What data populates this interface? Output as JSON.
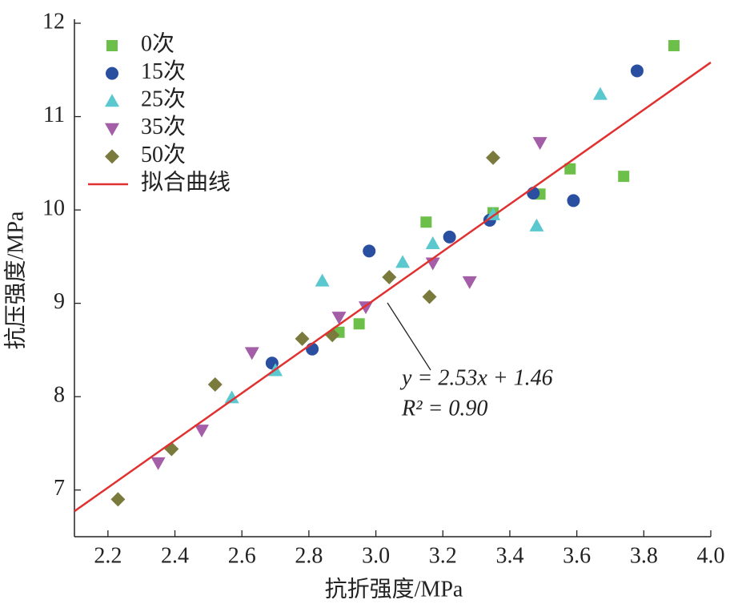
{
  "chart_data": {
    "type": "scatter",
    "xlabel": "抗折强度/MPa",
    "ylabel": "抗压强度/MPa",
    "xlim": [
      2.1,
      4.0
    ],
    "ylim": [
      6.5,
      12
    ],
    "xticks": [
      2.2,
      2.4,
      2.6,
      2.8,
      {
        "value": 3.0,
        "label": "3.0"
      },
      3.2,
      3.4,
      3.6,
      3.8,
      {
        "value": 4.0,
        "label": "4.0"
      }
    ],
    "yticks": [
      7,
      8,
      9,
      10,
      11,
      12
    ],
    "legend": "upper left",
    "annotation": [
      "y = 2.53x + 1.46",
      "R² = 0.90"
    ],
    "series": [
      {
        "name": "0次",
        "color": "#6cc04a",
        "marker": "square",
        "x": [
          3.89,
          3.58,
          3.74,
          3.49,
          3.35,
          3.15,
          2.95,
          2.89
        ],
        "values": [
          11.76,
          10.44,
          10.36,
          10.17,
          9.97,
          9.87,
          8.78,
          8.69
        ]
      },
      {
        "name": "15次",
        "color": "#2a4fa0",
        "marker": "circle",
        "x": [
          3.78,
          3.59,
          3.47,
          3.34,
          3.22,
          2.98,
          2.81,
          2.69
        ],
        "values": [
          11.49,
          10.1,
          10.18,
          9.89,
          9.71,
          9.56,
          8.51,
          8.36
        ]
      },
      {
        "name": "25次",
        "color": "#5bc8d0",
        "marker": "triangle-up",
        "x": [
          3.67,
          3.48,
          3.35,
          3.17,
          3.08,
          2.84,
          2.7,
          2.57
        ],
        "values": [
          11.24,
          9.83,
          9.95,
          9.64,
          9.44,
          9.24,
          8.28,
          7.99
        ]
      },
      {
        "name": "35次",
        "color": "#a45ea8",
        "marker": "triangle-down",
        "x": [
          3.49,
          3.28,
          3.17,
          2.97,
          2.89,
          2.63,
          2.48,
          2.35
        ],
        "values": [
          10.72,
          9.23,
          9.43,
          8.96,
          8.85,
          8.47,
          7.64,
          7.29
        ]
      },
      {
        "name": "50次",
        "color": "#7a7a3c",
        "marker": "diamond",
        "x": [
          3.35,
          3.04,
          3.16,
          2.87,
          2.78,
          2.52,
          2.39,
          2.23
        ],
        "values": [
          10.56,
          9.28,
          9.07,
          8.66,
          8.62,
          8.13,
          7.44,
          6.9
        ]
      },
      {
        "name": "拟合曲线",
        "color": "#e03030",
        "marker": "line",
        "x": [
          2.1,
          4.0
        ],
        "values": [
          6.773,
          11.58
        ]
      }
    ]
  }
}
